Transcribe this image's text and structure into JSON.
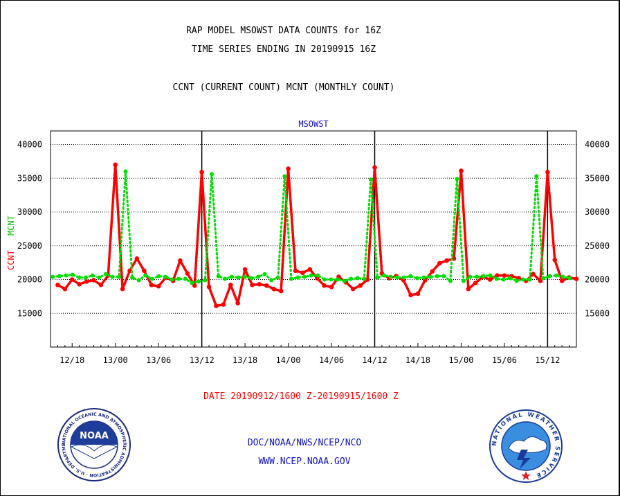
{
  "header": {
    "title_line1": "RAP MODEL MSOWST DATA COUNTS for 16Z",
    "title_line2": "TIME SERIES ENDING IN 20190915 16Z",
    "subtitle": "CCNT (CURRENT COUNT) MCNT (MONTHLY COUNT)",
    "panel_label": "MSOWST"
  },
  "footer": {
    "date_range": "DATE 20190912/1600 Z-20190915/1600 Z",
    "org": "DOC/NOAA/NWS/NCEP/NCO",
    "url": "WWW.NCEP.NOAA.GOV",
    "noaa_logo_text": "NOAA",
    "noaa_ring_text": "NATIONAL OCEANIC AND ATMOSPHERIC ADMINISTRATION · U.S. DEPARTMENT OF COMMERCE",
    "nws_ring_text": "NATIONAL WEATHER SERVICE"
  },
  "colors": {
    "ccnt": "#ff0000",
    "mcnt": "#00e000",
    "text_blue": "#1010c8",
    "text_red": "#ff0000"
  },
  "chart_data": {
    "type": "line",
    "title": "MSOWST",
    "ylabel_ccnt": "CCNT",
    "ylabel_mcnt": "MCNT",
    "ylim": [
      10000,
      42000
    ],
    "yticks": [
      15000,
      20000,
      25000,
      30000,
      35000,
      40000
    ],
    "ytick_labels": [
      "15000",
      "20000",
      "25000",
      "30000",
      "35000",
      "40000"
    ],
    "xlim": [
      -1,
      72
    ],
    "x_tick_labels": [
      "12/18",
      "13/00",
      "13/06",
      "13/12",
      "13/18",
      "14/00",
      "14/06",
      "14/12",
      "14/18",
      "15/00",
      "15/06",
      "15/12"
    ],
    "x_tick_hours": [
      2,
      8,
      14,
      20,
      26,
      32,
      38,
      44,
      50,
      56,
      62,
      68
    ],
    "day_boundaries": [
      20,
      44,
      68
    ],
    "grid": true,
    "series": [
      {
        "name": "CCNT",
        "color": "#ff0000",
        "values": [
          19200,
          18600,
          20000,
          19300,
          19700,
          19900,
          19200,
          20600,
          37000,
          18600,
          21300,
          23100,
          21300,
          19200,
          19000,
          20300,
          19800,
          22800,
          20900,
          19100,
          35900,
          18900,
          16100,
          16300,
          19200,
          16500,
          21500,
          19200,
          19300,
          19100,
          18600,
          18300,
          36400,
          21300,
          21000,
          21500,
          20200,
          19100,
          18900,
          20400,
          19600,
          18600,
          19100,
          20000,
          36600,
          20900,
          20200,
          20500,
          19900,
          17700,
          17900,
          19900,
          21200,
          22400,
          22800,
          23100,
          36100,
          18600,
          19500,
          20400,
          20000,
          20600,
          20600,
          20500,
          20200,
          19800,
          20800,
          19800,
          35900,
          22900,
          19800,
          20300,
          20100
        ],
        "start_hour": 0
      },
      {
        "name": "MCNT",
        "color": "#00e000",
        "values": [
          20400,
          20500,
          20600,
          20700,
          20300,
          20300,
          20600,
          20300,
          20800,
          20400,
          20400,
          36000,
          20300,
          19900,
          20600,
          20100,
          20500,
          20400,
          20000,
          20100,
          20100,
          19500,
          19700,
          19900,
          35600,
          20500,
          20100,
          20400,
          20300,
          20400,
          20200,
          20400,
          20800,
          19900,
          20300,
          35300,
          20100,
          20300,
          20400,
          20600,
          20600,
          20000,
          20000,
          20000,
          19800,
          20100,
          20200,
          20100,
          34800,
          20300,
          20600,
          20400,
          20300,
          20300,
          20500,
          20200,
          20300,
          20400,
          20500,
          20500,
          19800,
          34900,
          19800,
          20400,
          20400,
          20500,
          20600,
          20100,
          20000,
          20200,
          19800,
          20000,
          20000,
          35300,
          20200,
          20500,
          20600,
          20400,
          20200
        ],
        "start_hour": -0.7,
        "step_hours": 0.92
      }
    ]
  }
}
